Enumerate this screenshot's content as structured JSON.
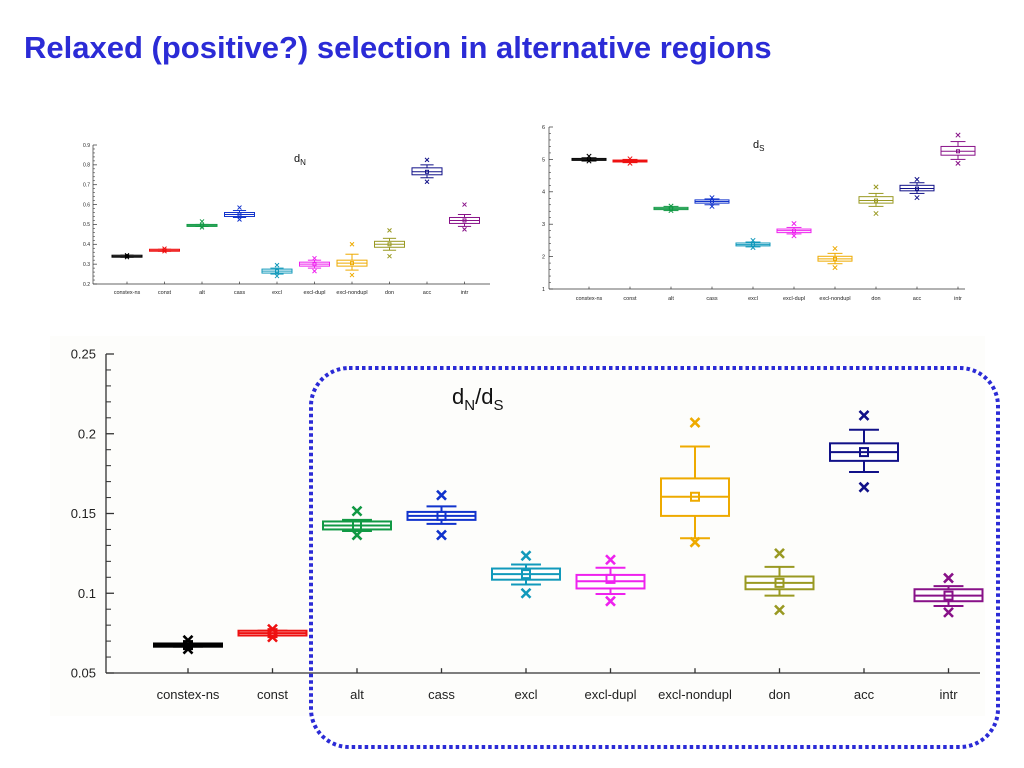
{
  "page": {
    "title": "Relaxed (positive?) selection in alternative regions"
  },
  "categories": [
    "constex-ns",
    "const",
    "alt",
    "cass",
    "excl",
    "excl-dupl",
    "excl-nondupl",
    "don",
    "acc",
    "intr"
  ],
  "colors": [
    "#000000",
    "#ee1111",
    "#119944",
    "#1133cc",
    "#1199bb",
    "#ee22ee",
    "#eeaa00",
    "#999922",
    "#111188",
    "#881188"
  ],
  "chart_data": [
    {
      "type": "box",
      "id": "dn",
      "title": "dN",
      "title_main": "d",
      "title_sub": "N",
      "ylim": [
        0.2,
        0.9
      ],
      "yticks": [
        "0.2",
        "0.3",
        "0.4",
        "0.5",
        "0.6",
        "0.7",
        "0.8",
        "0.9"
      ],
      "boxes": [
        {
          "q1": 0.335,
          "median": 0.34,
          "q3": 0.345,
          "wlo": 0.335,
          "whi": 0.345,
          "mean": 0.34,
          "outliers": [
            0.335,
            0.345
          ]
        },
        {
          "q1": 0.365,
          "median": 0.37,
          "q3": 0.375,
          "wlo": 0.365,
          "whi": 0.375,
          "mean": 0.37,
          "outliers": [
            0.365,
            0.378
          ]
        },
        {
          "q1": 0.49,
          "median": 0.495,
          "q3": 0.5,
          "wlo": 0.49,
          "whi": 0.5,
          "mean": 0.495,
          "outliers": [
            0.485,
            0.515
          ]
        },
        {
          "q1": 0.54,
          "median": 0.55,
          "q3": 0.56,
          "wlo": 0.535,
          "whi": 0.57,
          "mean": 0.55,
          "outliers": [
            0.525,
            0.585
          ]
        },
        {
          "q1": 0.255,
          "median": 0.265,
          "q3": 0.275,
          "wlo": 0.25,
          "whi": 0.28,
          "mean": 0.265,
          "outliers": [
            0.24,
            0.295
          ]
        },
        {
          "q1": 0.29,
          "median": 0.3,
          "q3": 0.31,
          "wlo": 0.28,
          "whi": 0.32,
          "mean": 0.3,
          "outliers": [
            0.265,
            0.33
          ]
        },
        {
          "q1": 0.29,
          "median": 0.305,
          "q3": 0.32,
          "wlo": 0.27,
          "whi": 0.35,
          "mean": 0.305,
          "outliers": [
            0.245,
            0.4
          ]
        },
        {
          "q1": 0.385,
          "median": 0.4,
          "q3": 0.415,
          "wlo": 0.37,
          "whi": 0.43,
          "mean": 0.4,
          "outliers": [
            0.34,
            0.47
          ]
        },
        {
          "q1": 0.75,
          "median": 0.765,
          "q3": 0.785,
          "wlo": 0.735,
          "whi": 0.8,
          "mean": 0.765,
          "outliers": [
            0.715,
            0.825
          ]
        },
        {
          "q1": 0.505,
          "median": 0.52,
          "q3": 0.535,
          "wlo": 0.49,
          "whi": 0.55,
          "mean": 0.52,
          "outliers": [
            0.475,
            0.6
          ]
        }
      ]
    },
    {
      "type": "box",
      "id": "ds",
      "title": "dS",
      "title_main": "d",
      "title_sub": "S",
      "ylim": [
        1,
        6
      ],
      "yticks": [
        "1",
        "2",
        "3",
        "4",
        "5",
        "6"
      ],
      "boxes": [
        {
          "q1": 4.97,
          "median": 5.0,
          "q3": 5.03,
          "wlo": 4.95,
          "whi": 5.05,
          "mean": 5.0,
          "outliers": [
            4.95,
            5.1
          ]
        },
        {
          "q1": 4.92,
          "median": 4.95,
          "q3": 4.98,
          "wlo": 4.9,
          "whi": 5.0,
          "mean": 4.95,
          "outliers": [
            4.88,
            5.02
          ]
        },
        {
          "q1": 3.45,
          "median": 3.48,
          "q3": 3.52,
          "wlo": 3.42,
          "whi": 3.55,
          "mean": 3.48,
          "outliers": [
            3.42,
            3.56
          ]
        },
        {
          "q1": 3.65,
          "median": 3.7,
          "q3": 3.75,
          "wlo": 3.6,
          "whi": 3.78,
          "mean": 3.7,
          "outliers": [
            3.55,
            3.82
          ]
        },
        {
          "q1": 2.33,
          "median": 2.37,
          "q3": 2.42,
          "wlo": 2.3,
          "whi": 2.45,
          "mean": 2.37,
          "outliers": [
            2.28,
            2.5
          ]
        },
        {
          "q1": 2.74,
          "median": 2.8,
          "q3": 2.85,
          "wlo": 2.7,
          "whi": 2.9,
          "mean": 2.8,
          "outliers": [
            2.64,
            3.02
          ]
        },
        {
          "q1": 1.86,
          "median": 1.93,
          "q3": 2.01,
          "wlo": 1.78,
          "whi": 2.1,
          "mean": 1.93,
          "outliers": [
            1.66,
            2.25
          ]
        },
        {
          "q1": 3.65,
          "median": 3.73,
          "q3": 3.85,
          "wlo": 3.55,
          "whi": 3.95,
          "mean": 3.73,
          "outliers": [
            3.33,
            4.15
          ]
        },
        {
          "q1": 4.03,
          "median": 4.1,
          "q3": 4.2,
          "wlo": 3.95,
          "whi": 4.28,
          "mean": 4.1,
          "outliers": [
            3.82,
            4.38
          ]
        },
        {
          "q1": 5.13,
          "median": 5.25,
          "q3": 5.4,
          "wlo": 5.0,
          "whi": 5.55,
          "mean": 5.25,
          "outliers": [
            4.88,
            5.75
          ]
        }
      ]
    },
    {
      "type": "box",
      "id": "dnds",
      "title": "dN/dS",
      "title_main1": "d",
      "title_sub1": "N",
      "title_sep": "/d",
      "title_sub2": "S",
      "ylim": [
        0.05,
        0.25
      ],
      "yticks": [
        "0.05",
        "0.1",
        "0.15",
        "0.2",
        "0.25"
      ],
      "boxes": [
        {
          "q1": 0.0665,
          "median": 0.0675,
          "q3": 0.0685,
          "wlo": 0.0665,
          "whi": 0.0685,
          "mean": 0.0675,
          "outliers": [
            0.065,
            0.0705
          ]
        },
        {
          "q1": 0.0735,
          "median": 0.075,
          "q3": 0.0765,
          "wlo": 0.0735,
          "whi": 0.0765,
          "mean": 0.075,
          "outliers": [
            0.0725,
            0.0775
          ]
        },
        {
          "q1": 0.14,
          "median": 0.1425,
          "q3": 0.145,
          "wlo": 0.139,
          "whi": 0.146,
          "mean": 0.1425,
          "outliers": [
            0.1365,
            0.1515
          ]
        },
        {
          "q1": 0.146,
          "median": 0.1485,
          "q3": 0.151,
          "wlo": 0.1435,
          "whi": 0.1545,
          "mean": 0.1485,
          "outliers": [
            0.1365,
            0.1615
          ]
        },
        {
          "q1": 0.1085,
          "median": 0.112,
          "q3": 0.1155,
          "wlo": 0.1055,
          "whi": 0.118,
          "mean": 0.112,
          "outliers": [
            0.1,
            0.1235
          ]
        },
        {
          "q1": 0.103,
          "median": 0.1075,
          "q3": 0.1115,
          "wlo": 0.0995,
          "whi": 0.116,
          "mean": 0.109,
          "outliers": [
            0.095,
            0.121
          ]
        },
        {
          "q1": 0.1485,
          "median": 0.1605,
          "q3": 0.172,
          "wlo": 0.1345,
          "whi": 0.192,
          "mean": 0.1605,
          "outliers": [
            0.132,
            0.207
          ]
        },
        {
          "q1": 0.1025,
          "median": 0.1065,
          "q3": 0.1105,
          "wlo": 0.0985,
          "whi": 0.1165,
          "mean": 0.1065,
          "outliers": [
            0.0895,
            0.125
          ]
        },
        {
          "q1": 0.183,
          "median": 0.1885,
          "q3": 0.194,
          "wlo": 0.176,
          "whi": 0.2025,
          "mean": 0.1885,
          "outliers": [
            0.1665,
            0.2115
          ]
        },
        {
          "q1": 0.095,
          "median": 0.0985,
          "q3": 0.1025,
          "wlo": 0.092,
          "whi": 0.1045,
          "mean": 0.0985,
          "outliers": [
            0.088,
            0.1095
          ]
        }
      ]
    }
  ]
}
